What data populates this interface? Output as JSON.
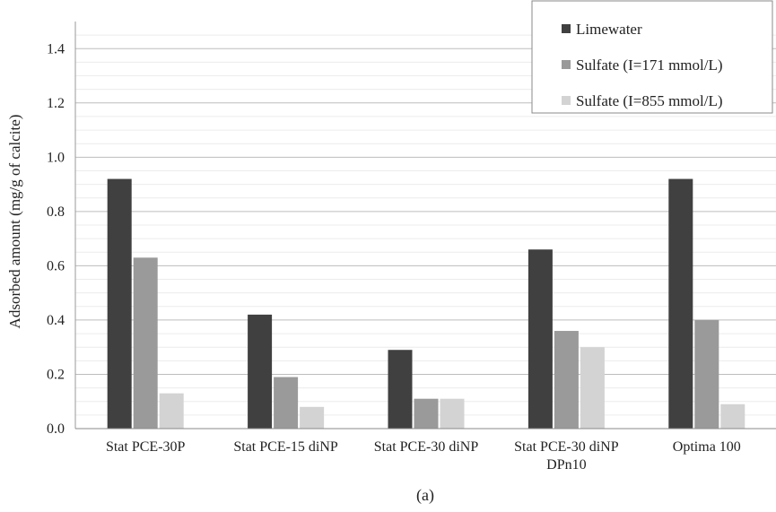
{
  "chart_data": {
    "type": "bar",
    "categories": [
      [
        "Stat PCE-30P"
      ],
      [
        "Stat PCE-15 diNP"
      ],
      [
        "Stat PCE-30 diNP"
      ],
      [
        "Stat PCE-30 diNP",
        "DPn10"
      ],
      [
        "Optima 100"
      ]
    ],
    "series": [
      {
        "name": "Limewater",
        "color": "#404040",
        "values": [
          0.92,
          0.42,
          0.29,
          0.66,
          0.92
        ]
      },
      {
        "name": "Sulfate (I=171 mmol/L)",
        "color": "#9a9a9a",
        "values": [
          0.63,
          0.19,
          0.11,
          0.36,
          0.4
        ]
      },
      {
        "name": "Sulfate (I=855 mmol/L)",
        "color": "#d3d3d3",
        "values": [
          0.13,
          0.08,
          0.11,
          0.3,
          0.09
        ]
      }
    ],
    "title": "",
    "xlabel": "",
    "ylabel": "Adsorbed amount (mg/g of calcite)",
    "ylim": [
      0,
      1.5
    ],
    "yticks": [
      "0.0",
      "0.2",
      "0.4",
      "0.6",
      "0.8",
      "1.0",
      "1.2",
      "1.4"
    ],
    "grid": true,
    "legend_position": "top-right"
  },
  "caption": "(a)"
}
